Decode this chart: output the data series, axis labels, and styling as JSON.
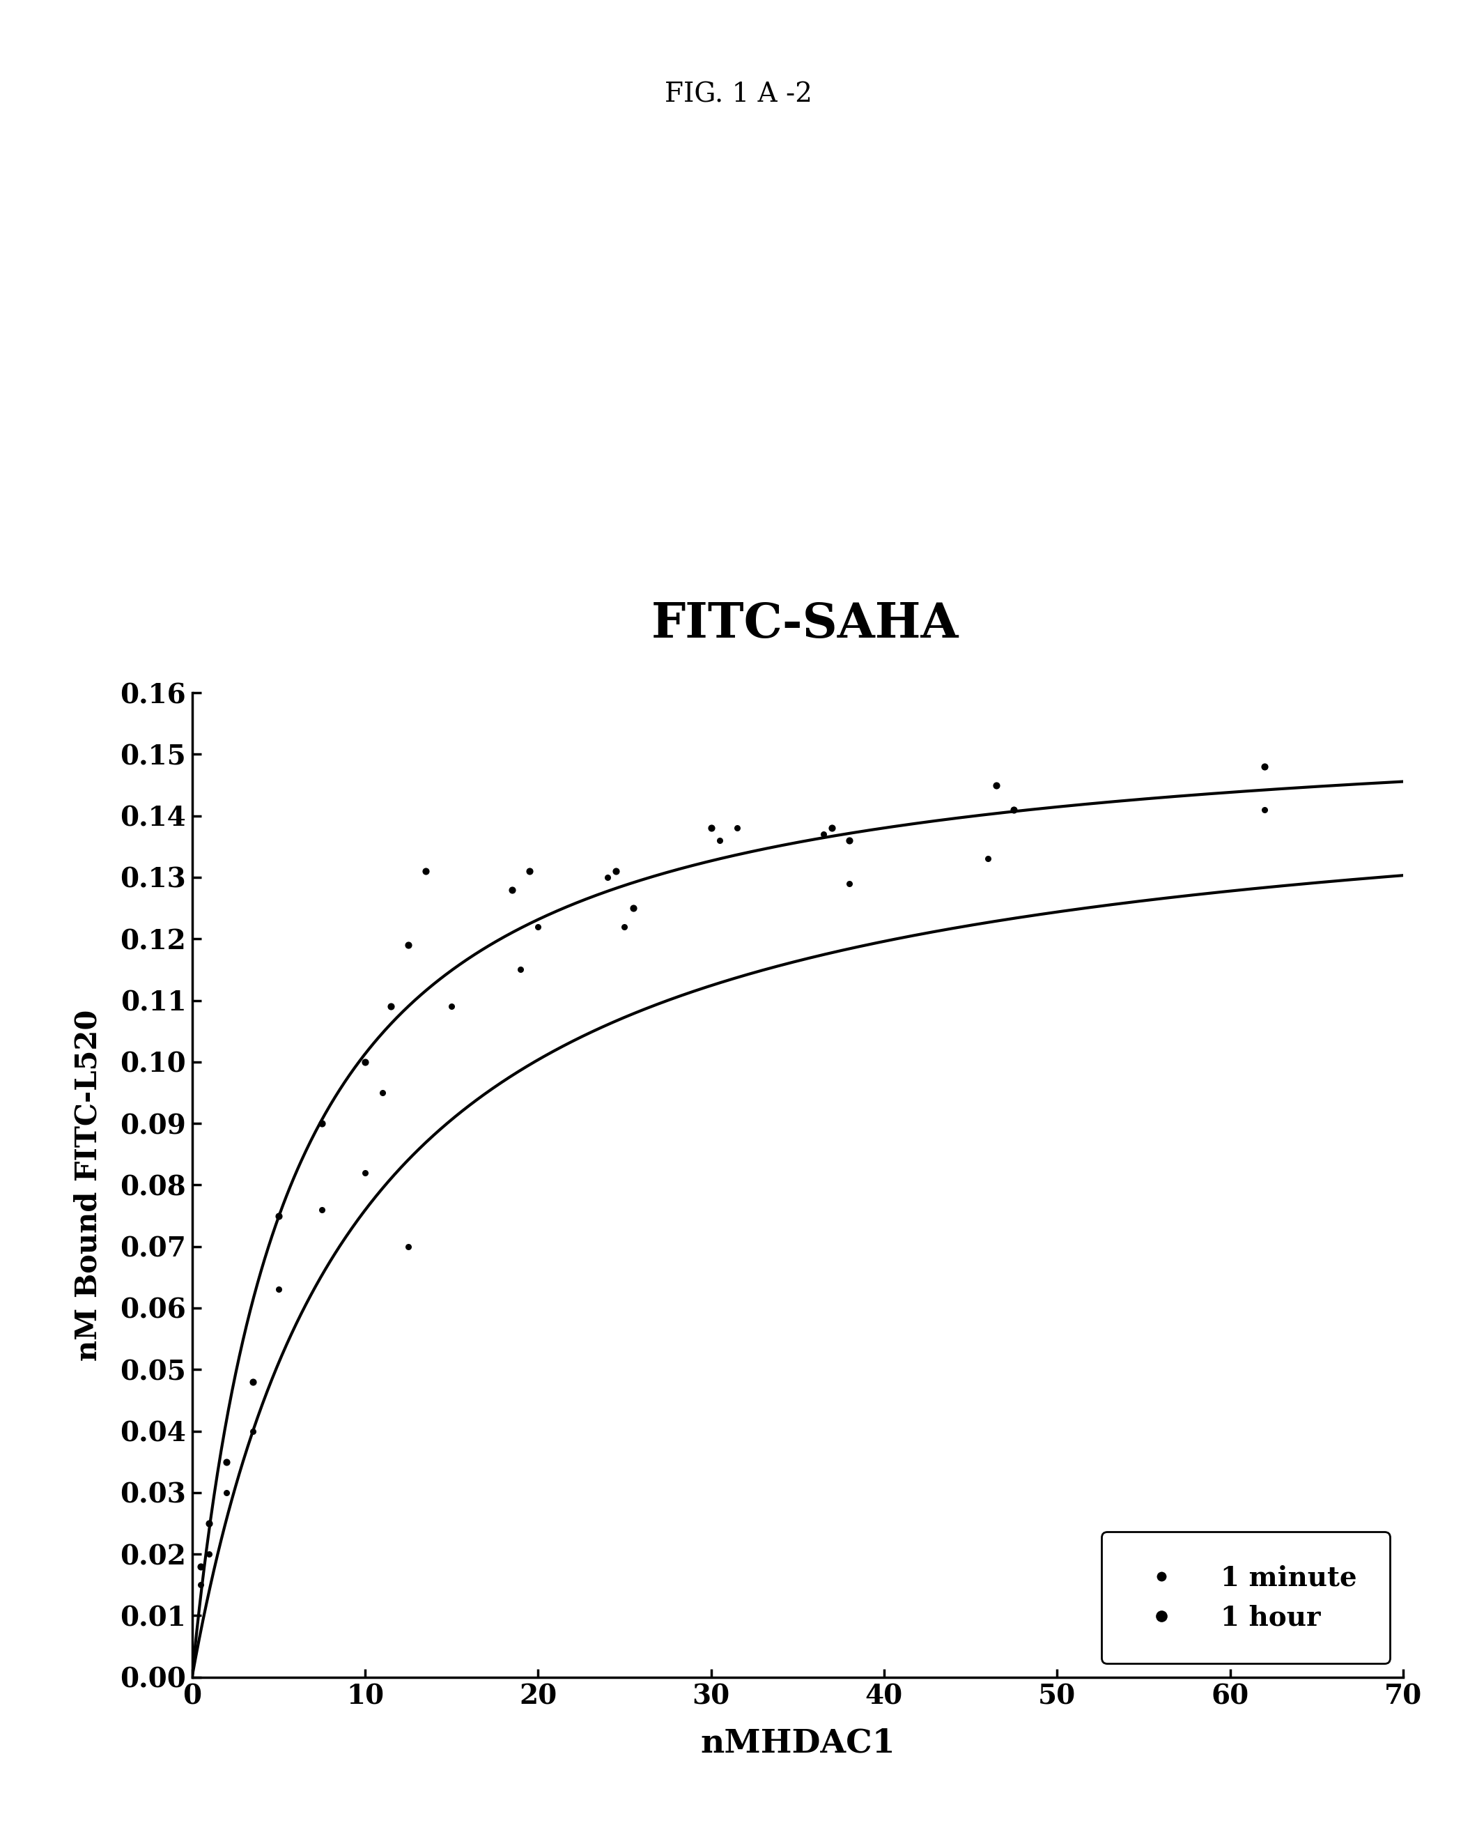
{
  "title_fig": "FIG. 1 A -2",
  "title_chart": "FITC-SAHA",
  "xlabel": "nMHDAC1",
  "ylabel": "nM Bound FITC-L520",
  "xlim": [
    0,
    70
  ],
  "ylim": [
    0.0,
    0.16
  ],
  "yticks": [
    0.0,
    0.01,
    0.02,
    0.03,
    0.04,
    0.05,
    0.06,
    0.07,
    0.08,
    0.09,
    0.1,
    0.11,
    0.12,
    0.13,
    0.14,
    0.15,
    0.16
  ],
  "xticks": [
    0,
    10,
    20,
    30,
    40,
    50,
    60,
    70
  ],
  "scatter_1min_x": [
    0.5,
    1.0,
    2.0,
    3.5,
    5.0,
    7.5,
    10.0,
    11.0,
    12.5,
    15.0,
    19.0,
    20.0,
    24.0,
    25.0,
    30.5,
    31.5,
    36.5,
    38.0,
    46.0,
    62.0
  ],
  "scatter_1min_y": [
    0.015,
    0.02,
    0.03,
    0.04,
    0.063,
    0.076,
    0.082,
    0.095,
    0.07,
    0.109,
    0.115,
    0.122,
    0.13,
    0.122,
    0.136,
    0.138,
    0.137,
    0.129,
    0.133,
    0.141
  ],
  "scatter_1hr_x": [
    0.5,
    1.0,
    2.0,
    3.5,
    5.0,
    7.5,
    10.0,
    11.5,
    12.5,
    13.5,
    18.5,
    19.5,
    24.5,
    25.5,
    30.0,
    37.0,
    38.0,
    46.5,
    47.5,
    62.0
  ],
  "scatter_1hr_y": [
    0.018,
    0.025,
    0.035,
    0.048,
    0.075,
    0.09,
    0.1,
    0.109,
    0.119,
    0.131,
    0.128,
    0.131,
    0.131,
    0.125,
    0.138,
    0.138,
    0.136,
    0.145,
    0.141,
    0.148
  ],
  "curve_1min_Bmax": 0.148,
  "curve_1min_Kd": 9.5,
  "curve_1hr_Bmax": 0.157,
  "curve_1hr_Kd": 5.5,
  "background_color": "#ffffff",
  "scatter_color": "#000000",
  "curve_color": "#000000",
  "legend_labels": [
    "1 minute",
    "1 hour"
  ]
}
